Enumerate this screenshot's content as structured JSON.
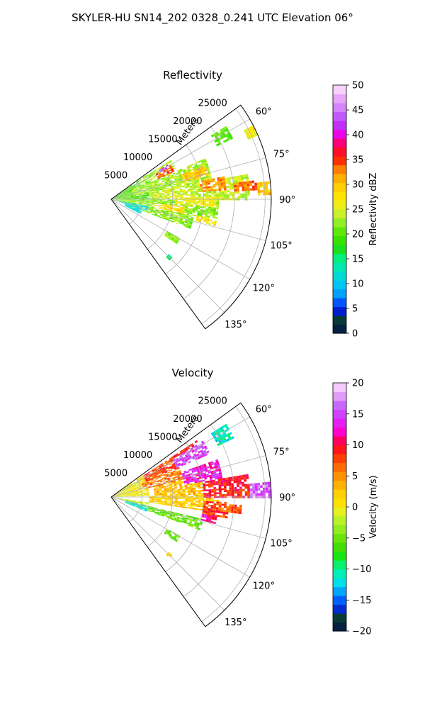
{
  "figure": {
    "suptitle": "SKYLER-HU  SN14_202  0328_0.241 UTC Elevation 06°"
  },
  "chart_data": [
    {
      "type": "heatmap",
      "projection": "polar-sector",
      "title": "Reflectivity",
      "radial_label": "Meters",
      "radial_ticks": [
        5000,
        10000,
        15000,
        20000,
        25000
      ],
      "radial_tick_labels": [
        "5000",
        "10000",
        "15000",
        "20000",
        "25000"
      ],
      "rlim": [
        0,
        26000
      ],
      "theta_ticks": [
        60,
        75,
        90,
        105,
        120,
        135
      ],
      "theta_tick_labels": [
        "60°",
        "75°",
        "90°",
        "105°",
        "120°",
        "135°"
      ],
      "theta_range": [
        54,
        144
      ],
      "grid": true,
      "colorbar": {
        "label": "Reflectivity dBZ",
        "range": [
          0,
          50
        ],
        "ticks": [
          0,
          5,
          10,
          15,
          20,
          25,
          30,
          35,
          40,
          45,
          50
        ],
        "tick_labels": [
          "0",
          "5",
          "10",
          "15",
          "20",
          "25",
          "30",
          "35",
          "40",
          "45",
          "50"
        ]
      },
      "fields": [
        {
          "az": [
            57,
            63
          ],
          "r": [
            19000,
            22000
          ],
          "value": 20
        },
        {
          "az": [
            62,
            66
          ],
          "r": [
            24000,
            25500
          ],
          "value": 26
        },
        {
          "az": [
            55,
            90
          ],
          "r": [
            0,
            7000
          ],
          "value": 20
        },
        {
          "az": [
            56,
            64
          ],
          "r": [
            5000,
            11500
          ],
          "value": 23
        },
        {
          "az": [
            60,
            66
          ],
          "r": [
            8000,
            11000
          ],
          "value": 34
        },
        {
          "az": [
            58,
            61
          ],
          "r": [
            9000,
            10500
          ],
          "value": 41
        },
        {
          "az": [
            66,
            80
          ],
          "r": [
            3500,
            16500
          ],
          "value": 23
        },
        {
          "az": [
            70,
            76
          ],
          "r": [
            12000,
            16000
          ],
          "value": 30
        },
        {
          "az": [
            79,
            90
          ],
          "r": [
            6000,
            22500
          ],
          "value": 24
        },
        {
          "az": [
            78,
            85
          ],
          "r": [
            14500,
            18500
          ],
          "value": 32
        },
        {
          "az": [
            82,
            86
          ],
          "r": [
            20000,
            23500
          ],
          "value": 33
        },
        {
          "az": [
            88,
            94
          ],
          "r": [
            10000,
            17000
          ],
          "value": 26
        },
        {
          "az": [
            90,
            102
          ],
          "r": [
            500,
            17500
          ],
          "value": 22
        },
        {
          "az": [
            95,
            101
          ],
          "r": [
            7000,
            12000
          ],
          "value": 28
        },
        {
          "az": [
            102,
            110
          ],
          "r": [
            4500,
            13500
          ],
          "value": 22
        },
        {
          "az": [
            100,
            104
          ],
          "r": [
            14000,
            17500
          ],
          "value": 27
        },
        {
          "az": [
            108,
            116
          ],
          "r": [
            2000,
            5000
          ],
          "value": 12
        },
        {
          "az": [
            119,
            124
          ],
          "r": [
            10000,
            12500
          ],
          "value": 22
        },
        {
          "az": [
            133,
            136
          ],
          "r": [
            12500,
            13500
          ],
          "value": 16
        },
        {
          "az": [
            100,
            108
          ],
          "r": [
            1000,
            6000
          ],
          "value": 13
        },
        {
          "az": [
            83,
            88
          ],
          "r": [
            23500,
            25800
          ],
          "value": 30
        }
      ]
    },
    {
      "type": "heatmap",
      "projection": "polar-sector",
      "title": "Velocity",
      "radial_label": "Meters",
      "radial_ticks": [
        5000,
        10000,
        15000,
        20000,
        25000
      ],
      "radial_tick_labels": [
        "5000",
        "10000",
        "15000",
        "20000",
        "25000"
      ],
      "rlim": [
        0,
        26000
      ],
      "theta_ticks": [
        60,
        75,
        90,
        105,
        120,
        135
      ],
      "theta_tick_labels": [
        "60°",
        "75°",
        "90°",
        "105°",
        "120°",
        "135°"
      ],
      "theta_range": [
        54,
        144
      ],
      "grid": true,
      "colorbar": {
        "label": "Velocity (m/s)",
        "range": [
          -20,
          20
        ],
        "ticks": [
          -20,
          -15,
          -10,
          -5,
          0,
          5,
          10,
          15,
          20
        ],
        "tick_labels": [
          "−20",
          "−15",
          "−10",
          "−5",
          "0",
          "5",
          "10",
          "15",
          "20"
        ]
      },
      "fields": [
        {
          "az": [
            57,
            64
          ],
          "r": [
            19000,
            22000
          ],
          "value": -11
        },
        {
          "az": [
            55,
            88
          ],
          "r": [
            0,
            6000
          ],
          "value": 0
        },
        {
          "az": [
            56,
            66
          ],
          "r": [
            6000,
            16500
          ],
          "value": 8
        },
        {
          "az": [
            58,
            66
          ],
          "r": [
            11500,
            17500
          ],
          "value": 15
        },
        {
          "az": [
            66,
            76
          ],
          "r": [
            5000,
            12000
          ],
          "value": 6
        },
        {
          "az": [
            70,
            80
          ],
          "r": [
            12000,
            18000
          ],
          "value": 13
        },
        {
          "az": [
            76,
            88
          ],
          "r": [
            7000,
            18000
          ],
          "value": 3
        },
        {
          "az": [
            80,
            90
          ],
          "r": [
            15000,
            22500
          ],
          "value": 9
        },
        {
          "az": [
            84,
            90
          ],
          "r": [
            22500,
            25800
          ],
          "value": 16
        },
        {
          "az": [
            88,
            98
          ],
          "r": [
            6000,
            17500
          ],
          "value": 2
        },
        {
          "az": [
            92,
            100
          ],
          "r": [
            15000,
            19000
          ],
          "value": 8
        },
        {
          "az": [
            100,
            104
          ],
          "r": [
            15000,
            17500
          ],
          "value": 11
        },
        {
          "az": [
            98,
            103
          ],
          "r": [
            0,
            6000
          ],
          "value": -2
        },
        {
          "az": [
            103,
            112
          ],
          "r": [
            2000,
            6000
          ],
          "value": -11
        },
        {
          "az": [
            103,
            110
          ],
          "r": [
            6000,
            15000
          ],
          "value": -5
        },
        {
          "az": [
            119,
            124
          ],
          "r": [
            10000,
            12500
          ],
          "value": -5
        },
        {
          "az": [
            133,
            136
          ],
          "r": [
            12500,
            13500
          ],
          "value": 0
        },
        {
          "az": [
            93,
            97
          ],
          "r": [
            17500,
            21000
          ],
          "value": 7
        }
      ]
    }
  ]
}
